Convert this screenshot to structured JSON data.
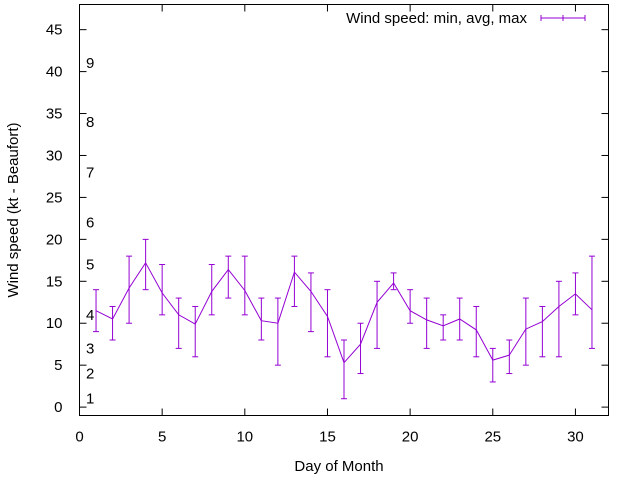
{
  "chart_data": {
    "type": "line",
    "xlabel": "Day of Month",
    "ylabel": "Wind speed (kt - Beaufort)",
    "xlim": [
      0,
      32
    ],
    "ylim": [
      -1,
      48
    ],
    "x_ticks": [
      0,
      5,
      10,
      15,
      20,
      25,
      30
    ],
    "y_ticks": [
      0,
      5,
      10,
      15,
      20,
      25,
      30,
      35,
      40,
      45
    ],
    "grid": false,
    "legend_position": "top-right",
    "line_color": "#9400d3",
    "beaufort_labels": [
      {
        "label": "1",
        "value": 1
      },
      {
        "label": "2",
        "value": 4
      },
      {
        "label": "3",
        "value": 7
      },
      {
        "label": "4",
        "value": 11
      },
      {
        "label": "5",
        "value": 17
      },
      {
        "label": "6",
        "value": 22
      },
      {
        "label": "7",
        "value": 28
      },
      {
        "label": "8",
        "value": 34
      },
      {
        "label": "9",
        "value": 41
      }
    ],
    "series": [
      {
        "name": "Wind speed: min, avg, max",
        "x": [
          1,
          2,
          3,
          4,
          5,
          6,
          7,
          8,
          9,
          10,
          11,
          12,
          13,
          14,
          15,
          16,
          17,
          18,
          19,
          20,
          21,
          22,
          23,
          24,
          25,
          26,
          27,
          28,
          29,
          30,
          31
        ],
        "min": [
          9,
          8,
          10,
          14,
          11,
          7,
          6,
          11,
          13,
          11,
          8,
          5,
          12,
          9,
          6,
          1,
          4,
          7,
          14,
          10,
          7,
          8,
          8,
          6,
          3,
          4,
          5,
          6,
          6,
          11,
          7
        ],
        "avg": [
          11.5,
          10.5,
          14.2,
          17.2,
          13.6,
          11,
          9.9,
          13.8,
          16.4,
          13.9,
          10.3,
          10,
          16.1,
          13.8,
          10.8,
          5.3,
          7.5,
          12.5,
          14.8,
          11.5,
          10.4,
          9.7,
          10.5,
          9.2,
          5.6,
          6.2,
          9.3,
          10.2,
          12,
          13.5,
          11.6
        ],
        "max": [
          14,
          12,
          18,
          20,
          17,
          13,
          12,
          17,
          18,
          18,
          13,
          13,
          18,
          16,
          14,
          8,
          10,
          15,
          16,
          14,
          13,
          11,
          13,
          12,
          7,
          8,
          13,
          12,
          15,
          16,
          18
        ]
      }
    ]
  }
}
